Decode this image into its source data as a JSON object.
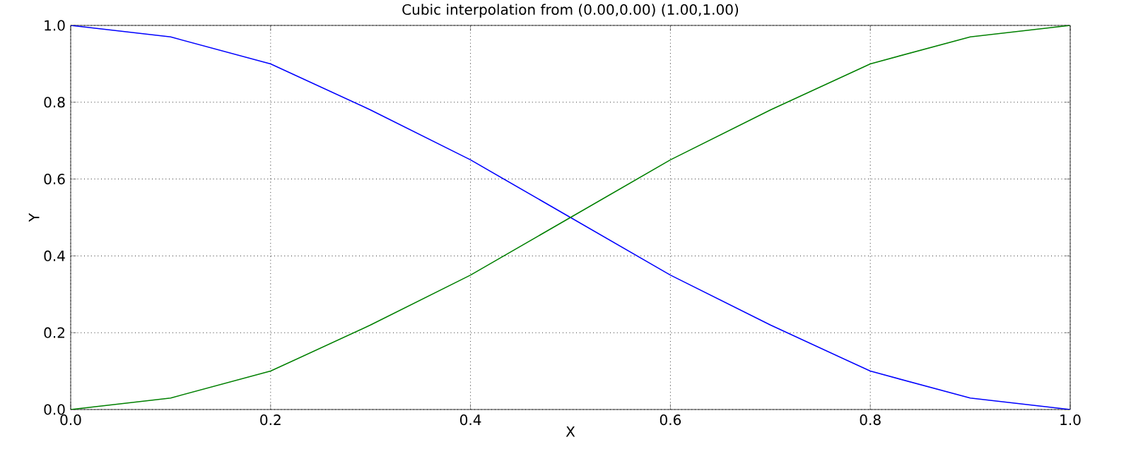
{
  "chart_data": {
    "type": "line",
    "title": "Cubic interpolation from (0.00,0.00) (1.00,1.00)",
    "xlabel": "X",
    "ylabel": "Y",
    "x": [
      0,
      0.1,
      0.2,
      0.3,
      0.4,
      0.5,
      0.6,
      0.7,
      0.8,
      0.9,
      1.0
    ],
    "series": [
      {
        "color": "#0000ff",
        "values": [
          1.0,
          0.97,
          0.9,
          0.78,
          0.65,
          0.5,
          0.35,
          0.22,
          0.1,
          0.03,
          0.0
        ]
      },
      {
        "color": "#008000",
        "values": [
          0.0,
          0.03,
          0.1,
          0.22,
          0.35,
          0.5,
          0.65,
          0.78,
          0.9,
          0.97,
          1.0
        ]
      }
    ],
    "xlim": [
      0,
      1
    ],
    "ylim": [
      0,
      1
    ],
    "xticks": [
      {
        "value": 0,
        "label": "0.0"
      },
      {
        "value": 0.2,
        "label": "0.2"
      },
      {
        "value": 0.4,
        "label": "0.4"
      },
      {
        "value": 0.6,
        "label": "0.6"
      },
      {
        "value": 0.8,
        "label": "0.8"
      },
      {
        "value": 1.0,
        "label": "1.0"
      }
    ],
    "yticks": [
      {
        "value": 0,
        "label": "0.0"
      },
      {
        "value": 0.2,
        "label": "0.2"
      },
      {
        "value": 0.4,
        "label": "0.4"
      },
      {
        "value": 0.6,
        "label": "0.6"
      },
      {
        "value": 0.8,
        "label": "0.8"
      },
      {
        "value": 1.0,
        "label": "1.0"
      }
    ],
    "grid": true
  }
}
